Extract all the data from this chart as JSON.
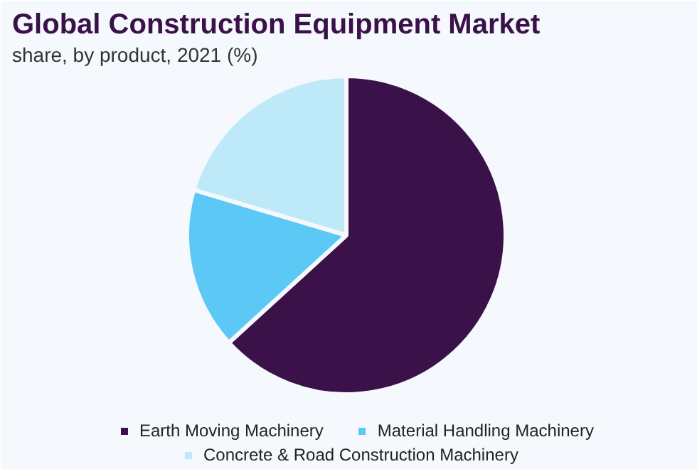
{
  "chart_data": {
    "type": "pie",
    "title": "Global Construction Equipment Market",
    "subtitle": "share, by product, 2021 (%)",
    "categories": [
      "Earth Moving Machinery",
      "Material Handling Machinery",
      "Concrete & Road Construction Machinery"
    ],
    "values": [
      63.2,
      16.4,
      20.4
    ],
    "colors": [
      "#3a1149",
      "#5bc8f5",
      "#bde9f9"
    ],
    "legend": "bottom"
  }
}
